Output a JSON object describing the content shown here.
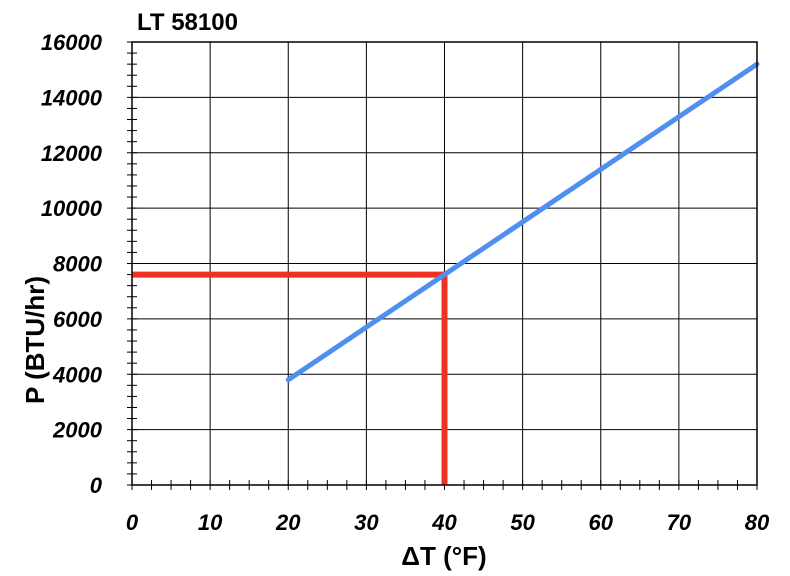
{
  "chart_data": {
    "type": "line",
    "title": "LT 58100",
    "xlabel": "ΔT (°F)",
    "ylabel": "P (BTU/hr)",
    "xlim": [
      0,
      80
    ],
    "ylim": [
      0,
      16000
    ],
    "x_ticks": [
      "0",
      "10",
      "20",
      "30",
      "40",
      "50",
      "60",
      "70",
      "80"
    ],
    "y_ticks": [
      "0",
      "2000",
      "4000",
      "6000",
      "8000",
      "10000",
      "12000",
      "14000",
      "16000"
    ],
    "grid": true,
    "series": [
      {
        "x": [
          20,
          80
        ],
        "y": [
          3800,
          15200
        ],
        "color": "#4f8ff0"
      }
    ],
    "annotations": {
      "reference_x": 40,
      "reference_y": 7600,
      "color": "#f03020"
    }
  }
}
